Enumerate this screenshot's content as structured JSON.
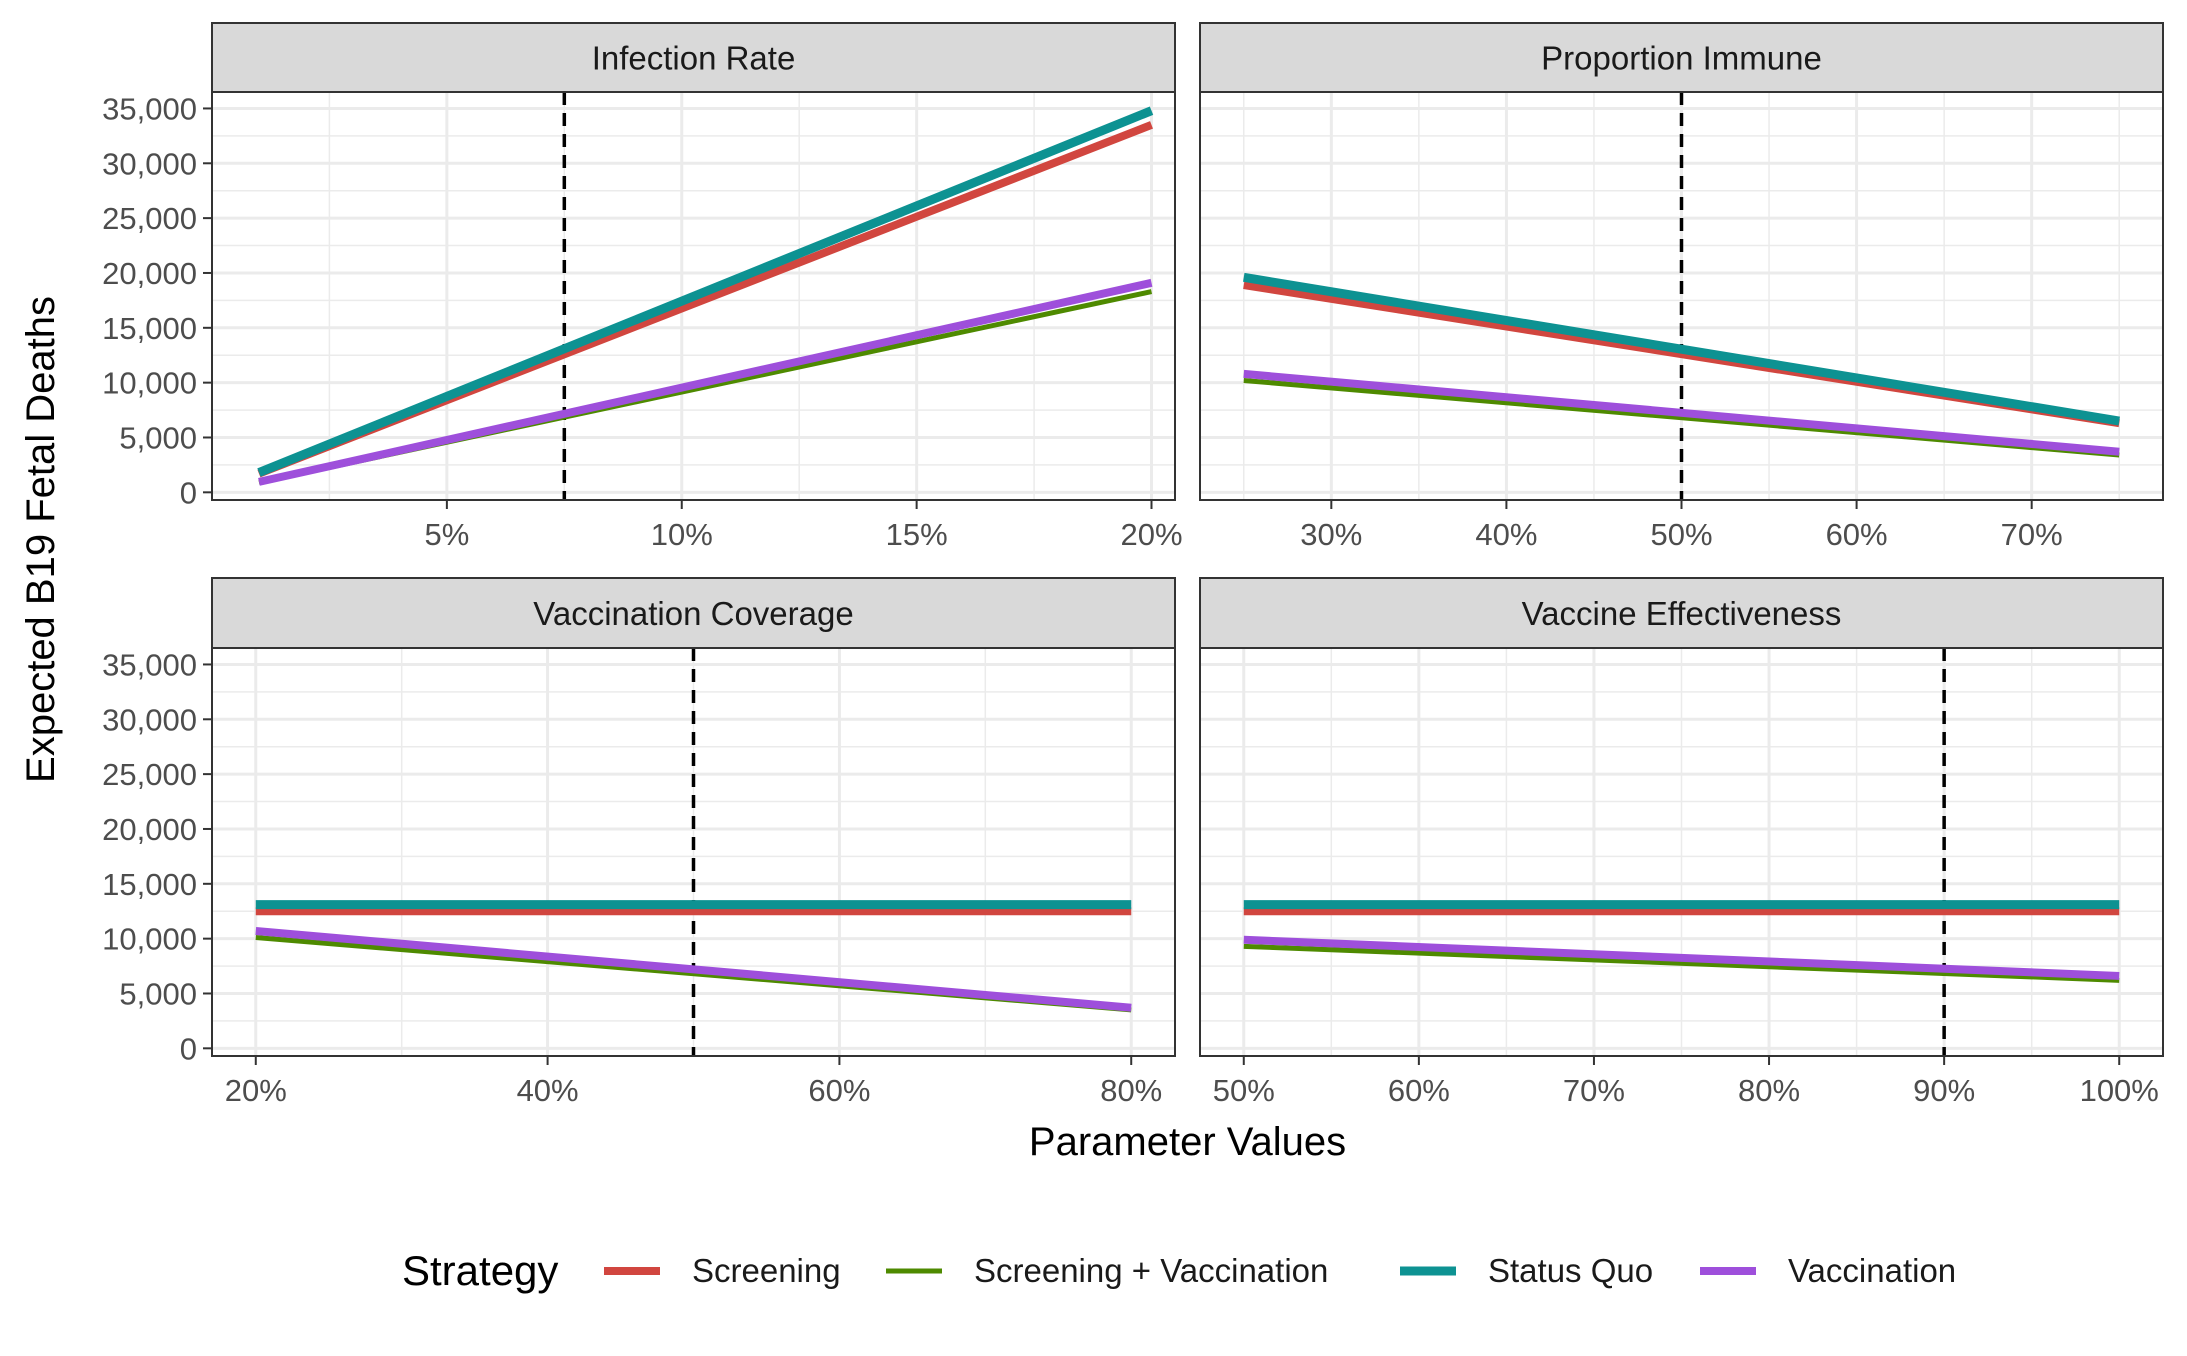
{
  "chart_data": {
    "type": "line",
    "facet_layout": "2x2",
    "ylabel": "Expected B19 Fetal Deaths",
    "xlabel": "Parameter Values",
    "ylim": [
      -700,
      36500
    ],
    "yticks": [
      0,
      5000,
      10000,
      15000,
      20000,
      25000,
      30000,
      35000
    ],
    "ytick_labels": [
      "0",
      "5,000",
      "10,000",
      "15,000",
      "20,000",
      "25,000",
      "30,000",
      "35,000"
    ],
    "grid": true,
    "legend": {
      "position": "bottom",
      "title": "Strategy",
      "entries": [
        "Screening",
        "Screening + Vaccination",
        "Status Quo",
        "Vaccination"
      ]
    },
    "colors": {
      "Screening": "#D1463F",
      "Screening + Vaccination": "#4E8A00",
      "Status Quo": "#0D9292",
      "Vaccination": "#9E4FDB",
      "reference_line": "#000000",
      "strip_fill": "#D9D9D9",
      "panel_border": "#333333",
      "grid": "#EBEBEB"
    },
    "panels": [
      {
        "title": "Infection Rate",
        "xlim": [
          0.0,
          0.205
        ],
        "xticks": [
          0.05,
          0.1,
          0.15,
          0.2
        ],
        "xtick_labels": [
          "5%",
          "10%",
          "15%",
          "20%"
        ],
        "reference_x": 0.075,
        "series": [
          {
            "name": "Screening",
            "x": [
              0.01,
              0.2
            ],
            "y": [
              1700,
              33500
            ]
          },
          {
            "name": "Screening + Vaccination",
            "x": [
              0.01,
              0.2
            ],
            "y": [
              900,
              18300
            ]
          },
          {
            "name": "Status Quo",
            "x": [
              0.01,
              0.2
            ],
            "y": [
              1800,
              34800
            ]
          },
          {
            "name": "Vaccination",
            "x": [
              0.01,
              0.2
            ],
            "y": [
              950,
              19100
            ]
          }
        ]
      },
      {
        "title": "Proportion Immune",
        "xlim": [
          0.225,
          0.775
        ],
        "xticks": [
          0.3,
          0.4,
          0.5,
          0.6,
          0.7
        ],
        "xtick_labels": [
          "30%",
          "40%",
          "50%",
          "60%",
          "70%"
        ],
        "reference_x": 0.5,
        "series": [
          {
            "name": "Screening",
            "x": [
              0.25,
              0.75
            ],
            "y": [
              18900,
              6300
            ]
          },
          {
            "name": "Screening + Vaccination",
            "x": [
              0.25,
              0.75
            ],
            "y": [
              10200,
              3400
            ]
          },
          {
            "name": "Status Quo",
            "x": [
              0.25,
              0.75
            ],
            "y": [
              19600,
              6500
            ]
          },
          {
            "name": "Vaccination",
            "x": [
              0.25,
              0.75
            ],
            "y": [
              10800,
              3700
            ]
          }
        ]
      },
      {
        "title": "Vaccination Coverage",
        "xlim": [
          0.17,
          0.83
        ],
        "xticks": [
          0.2,
          0.4,
          0.6,
          0.8
        ],
        "xtick_labels": [
          "20%",
          "40%",
          "60%",
          "80%"
        ],
        "reference_x": 0.5,
        "series": [
          {
            "name": "Screening",
            "x": [
              0.2,
              0.8
            ],
            "y": [
              12500,
              12500
            ]
          },
          {
            "name": "Screening + Vaccination",
            "x": [
              0.2,
              0.8
            ],
            "y": [
              10100,
              3500
            ]
          },
          {
            "name": "Status Quo",
            "x": [
              0.2,
              0.8
            ],
            "y": [
              13100,
              13100
            ]
          },
          {
            "name": "Vaccination",
            "x": [
              0.2,
              0.8
            ],
            "y": [
              10700,
              3700
            ]
          }
        ]
      },
      {
        "title": "Vaccine Effectiveness",
        "xlim": [
          0.475,
          1.025
        ],
        "xticks": [
          0.5,
          0.6,
          0.7,
          0.8,
          0.9,
          1.0
        ],
        "xtick_labels": [
          "50%",
          "60%",
          "70%",
          "80%",
          "90%",
          "100%"
        ],
        "reference_x": 0.9,
        "series": [
          {
            "name": "Screening",
            "x": [
              0.5,
              1.0
            ],
            "y": [
              12500,
              12500
            ]
          },
          {
            "name": "Screening + Vaccination",
            "x": [
              0.5,
              1.0
            ],
            "y": [
              9300,
              6200
            ]
          },
          {
            "name": "Status Quo",
            "x": [
              0.5,
              1.0
            ],
            "y": [
              13100,
              13100
            ]
          },
          {
            "name": "Vaccination",
            "x": [
              0.5,
              1.0
            ],
            "y": [
              9900,
              6600
            ]
          }
        ]
      }
    ]
  }
}
